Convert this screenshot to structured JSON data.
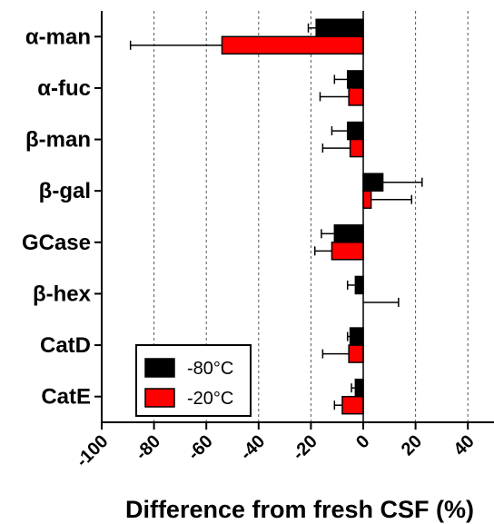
{
  "chart_data": {
    "type": "bar",
    "orientation": "horizontal",
    "categories": [
      "α-man",
      "α-fuc",
      "β-man",
      "β-gal",
      "GCase",
      "β-hex",
      "CatD",
      "CatE"
    ],
    "series": [
      {
        "name": "-80°C",
        "color": "#000000",
        "values": [
          -18,
          -6,
          -6,
          7.5,
          -11,
          -3,
          -5,
          -3
        ],
        "errors": [
          3,
          5,
          6,
          15,
          5,
          3,
          1,
          1.5
        ]
      },
      {
        "name": "-20°C",
        "color": "#ff0000",
        "values": [
          -54,
          -5.5,
          -5,
          3,
          -12,
          0,
          -5.5,
          -8
        ],
        "errors": [
          35,
          11,
          10.5,
          15.5,
          6.5,
          13.5,
          10,
          3
        ]
      }
    ],
    "xlabel": "Difference from fresh CSF (%)",
    "ylabel": "",
    "xlim": [
      -100,
      50
    ],
    "xticks": [
      -100,
      -80,
      -60,
      -40,
      -20,
      0,
      20,
      40
    ],
    "grid": "vertical dashed",
    "legend": "bottom-left"
  }
}
